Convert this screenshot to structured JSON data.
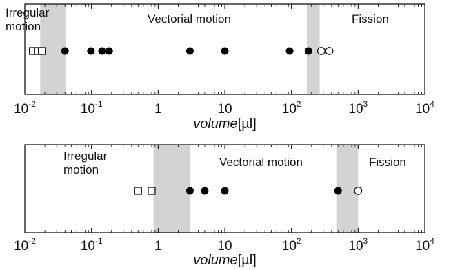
{
  "chart_data": [
    {
      "type": "scatter",
      "xscale": "log",
      "xlim": [
        0.01,
        10000
      ],
      "xlabel": {
        "italic": "volume",
        "unit": "[µl]"
      },
      "tick_labels": [
        {
          "value": 0.01,
          "base": "10",
          "exp": "-2"
        },
        {
          "value": 0.1,
          "base": "10",
          "exp": "-1"
        },
        {
          "value": 1,
          "base": "1",
          "exp": ""
        },
        {
          "value": 10,
          "base": "10",
          "exp": ""
        },
        {
          "value": 100,
          "base": "10",
          "exp": "2"
        },
        {
          "value": 1000,
          "base": "10",
          "exp": "3"
        },
        {
          "value": 10000,
          "base": "10",
          "exp": "4"
        }
      ],
      "regions": [
        {
          "lines": [
            "Irregular",
            "motion"
          ]
        },
        {
          "lines": [
            "Vectorial motion"
          ]
        },
        {
          "lines": [
            "Fission"
          ]
        }
      ],
      "transition_bands": [
        [
          0.017,
          0.041
        ],
        [
          170,
          265
        ]
      ],
      "points": [
        {
          "x": 0.0132,
          "marker": "open-square"
        },
        {
          "x": 0.0158,
          "marker": "open-square"
        },
        {
          "x": 0.018,
          "marker": "open-square"
        },
        {
          "x": 0.04,
          "marker": "filled-circle"
        },
        {
          "x": 0.098,
          "marker": "filled-circle"
        },
        {
          "x": 0.144,
          "marker": "filled-circle"
        },
        {
          "x": 0.184,
          "marker": "filled-circle"
        },
        {
          "x": 3.0,
          "marker": "filled-circle"
        },
        {
          "x": 10.0,
          "marker": "filled-circle"
        },
        {
          "x": 94,
          "marker": "filled-circle"
        },
        {
          "x": 180,
          "marker": "filled-circle"
        },
        {
          "x": 280,
          "marker": "open-circle"
        },
        {
          "x": 370,
          "marker": "open-circle"
        }
      ]
    },
    {
      "type": "scatter",
      "xscale": "log",
      "xlim": [
        0.01,
        10000
      ],
      "xlabel": {
        "italic": "volume",
        "unit": "[µl]"
      },
      "tick_labels": [
        {
          "value": 0.01,
          "base": "10",
          "exp": "-2"
        },
        {
          "value": 0.1,
          "base": "10",
          "exp": "-1"
        },
        {
          "value": 1,
          "base": "1",
          "exp": ""
        },
        {
          "value": 10,
          "base": "10",
          "exp": ""
        },
        {
          "value": 100,
          "base": "10",
          "exp": "2"
        },
        {
          "value": 1000,
          "base": "10",
          "exp": "3"
        },
        {
          "value": 10000,
          "base": "10",
          "exp": "4"
        }
      ],
      "regions": [
        {
          "lines": [
            "Irregular",
            "motion"
          ]
        },
        {
          "lines": [
            "Vectorial motion"
          ]
        },
        {
          "lines": [
            "Fission"
          ]
        }
      ],
      "transition_bands": [
        [
          0.85,
          3.0
        ],
        [
          470,
          1000
        ]
      ],
      "points": [
        {
          "x": 0.5,
          "marker": "open-square"
        },
        {
          "x": 0.8,
          "marker": "open-square"
        },
        {
          "x": 3.0,
          "marker": "filled-circle"
        },
        {
          "x": 5.0,
          "marker": "filled-circle"
        },
        {
          "x": 10.0,
          "marker": "filled-circle"
        },
        {
          "x": 500,
          "marker": "filled-circle"
        },
        {
          "x": 1000,
          "marker": "open-circle"
        }
      ]
    }
  ],
  "colors": {
    "band": "#d3d3d3",
    "axis": "#000000",
    "marker": "#000000"
  }
}
